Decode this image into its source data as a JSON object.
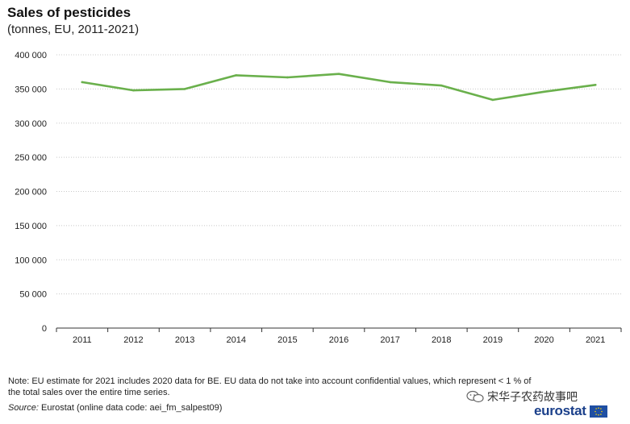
{
  "header": {
    "title": "Sales of pesticides",
    "subtitle": "(tonnes, EU, 2011-2021)"
  },
  "chart_data": {
    "type": "line",
    "title": "Sales of pesticides",
    "subtitle": "(tonnes, EU, 2011-2021)",
    "xlabel": "",
    "ylabel": "",
    "x": [
      "2011",
      "2012",
      "2013",
      "2014",
      "2015",
      "2016",
      "2017",
      "2018",
      "2019",
      "2020",
      "2021"
    ],
    "series": [
      {
        "values": [
          360000,
          348000,
          350000,
          370000,
          367000,
          372000,
          360000,
          355000,
          334000,
          346000,
          356000
        ]
      }
    ],
    "yticks": [
      "0",
      "50 000",
      "100 000",
      "150 000",
      "200 000",
      "250 000",
      "300 000",
      "350 000",
      "400 000"
    ],
    "ylim": [
      0,
      400000
    ],
    "grid": "horizontal-dotted",
    "line_color": "#6ab04c"
  },
  "footer": {
    "note": "Note: EU estimate for 2021 includes 2020 data for BE. EU data do not take into account confidential values, which represent < 1 % of the total sales over the entire time series.",
    "source_label": "Source:",
    "source_text": "Eurostat (online data code: aei_fm_salpest09)"
  },
  "watermark": {
    "text": "宋华子农药故事吧",
    "icon": "wechat-icon"
  },
  "brand": {
    "name": "eurostat",
    "icon": "eu-flag-icon"
  }
}
